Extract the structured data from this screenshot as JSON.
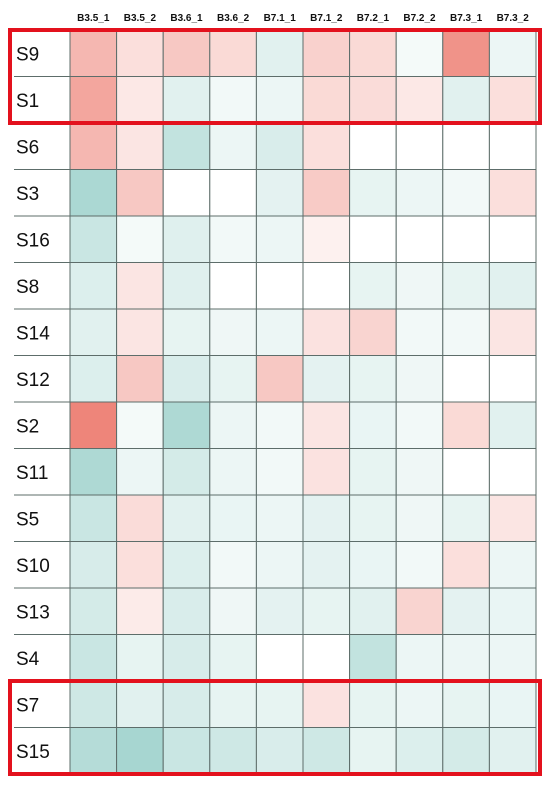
{
  "chart_data": {
    "type": "heatmap",
    "title": "",
    "xlabel": "",
    "ylabel": "",
    "columns": [
      "B3.5_1",
      "B3.5_2",
      "B3.6_1",
      "B3.6_2",
      "B7.1_1",
      "B7.1_2",
      "B7.2_1",
      "B7.2_2",
      "B7.3_1",
      "B7.3_2"
    ],
    "rows": [
      "S9",
      "S1",
      "S6",
      "S3",
      "S16",
      "S8",
      "S14",
      "S12",
      "S2",
      "S11",
      "S5",
      "S10",
      "S13",
      "S4",
      "S7",
      "S15"
    ],
    "value_range": [
      -1,
      1
    ],
    "values": [
      [
        0.5,
        0.22,
        0.38,
        0.26,
        -0.22,
        0.32,
        0.26,
        -0.08,
        0.75,
        -0.14
      ],
      [
        0.62,
        0.16,
        -0.22,
        -0.1,
        -0.14,
        0.26,
        0.24,
        0.16,
        -0.22,
        0.22
      ],
      [
        0.5,
        0.18,
        -0.45,
        -0.14,
        -0.28,
        0.22,
        null,
        null,
        null,
        null
      ],
      [
        -0.62,
        0.38,
        null,
        null,
        -0.2,
        0.36,
        -0.18,
        -0.14,
        -0.1,
        0.22
      ],
      [
        -0.4,
        -0.08,
        -0.24,
        -0.1,
        -0.14,
        0.1,
        null,
        null,
        null,
        null
      ],
      [
        -0.26,
        0.18,
        -0.24,
        null,
        null,
        null,
        -0.18,
        -0.12,
        -0.18,
        -0.22
      ],
      [
        -0.22,
        0.18,
        -0.18,
        -0.12,
        -0.14,
        0.2,
        0.3,
        -0.1,
        -0.1,
        0.18
      ],
      [
        -0.26,
        0.38,
        -0.28,
        -0.18,
        0.38,
        -0.2,
        -0.18,
        -0.12,
        null,
        null
      ],
      [
        0.85,
        -0.08,
        -0.6,
        -0.14,
        -0.1,
        0.18,
        -0.16,
        -0.1,
        0.26,
        -0.22
      ],
      [
        -0.6,
        -0.14,
        -0.32,
        -0.14,
        -0.1,
        0.2,
        -0.18,
        -0.12,
        null,
        null
      ],
      [
        -0.4,
        0.24,
        -0.22,
        -0.16,
        -0.14,
        -0.2,
        -0.18,
        -0.12,
        -0.18,
        0.18
      ],
      [
        -0.3,
        0.22,
        -0.26,
        -0.1,
        -0.14,
        -0.2,
        -0.16,
        -0.1,
        0.22,
        -0.14
      ],
      [
        -0.32,
        0.14,
        -0.28,
        -0.12,
        -0.2,
        -0.18,
        -0.22,
        0.3,
        -0.2,
        -0.16
      ],
      [
        -0.4,
        -0.18,
        -0.3,
        -0.18,
        null,
        null,
        -0.45,
        -0.14,
        -0.14,
        -0.14
      ],
      [
        -0.36,
        -0.22,
        -0.3,
        -0.18,
        -0.18,
        0.2,
        -0.18,
        -0.14,
        -0.18,
        -0.16
      ],
      [
        -0.55,
        -0.65,
        -0.4,
        -0.36,
        -0.28,
        -0.36,
        -0.18,
        -0.26,
        -0.32,
        -0.22
      ]
    ],
    "grid": true,
    "legend": "none",
    "colors": {
      "positive": "#eb6f62",
      "negative": "#78c0b8",
      "neutral": "#ffffff",
      "missing": "#ffffff",
      "grid_line": "#5d6d6a",
      "highlight": "#e3111d"
    },
    "highlighted_row_groups": [
      [
        "S9",
        "S1"
      ],
      [
        "S7",
        "S15"
      ]
    ]
  }
}
